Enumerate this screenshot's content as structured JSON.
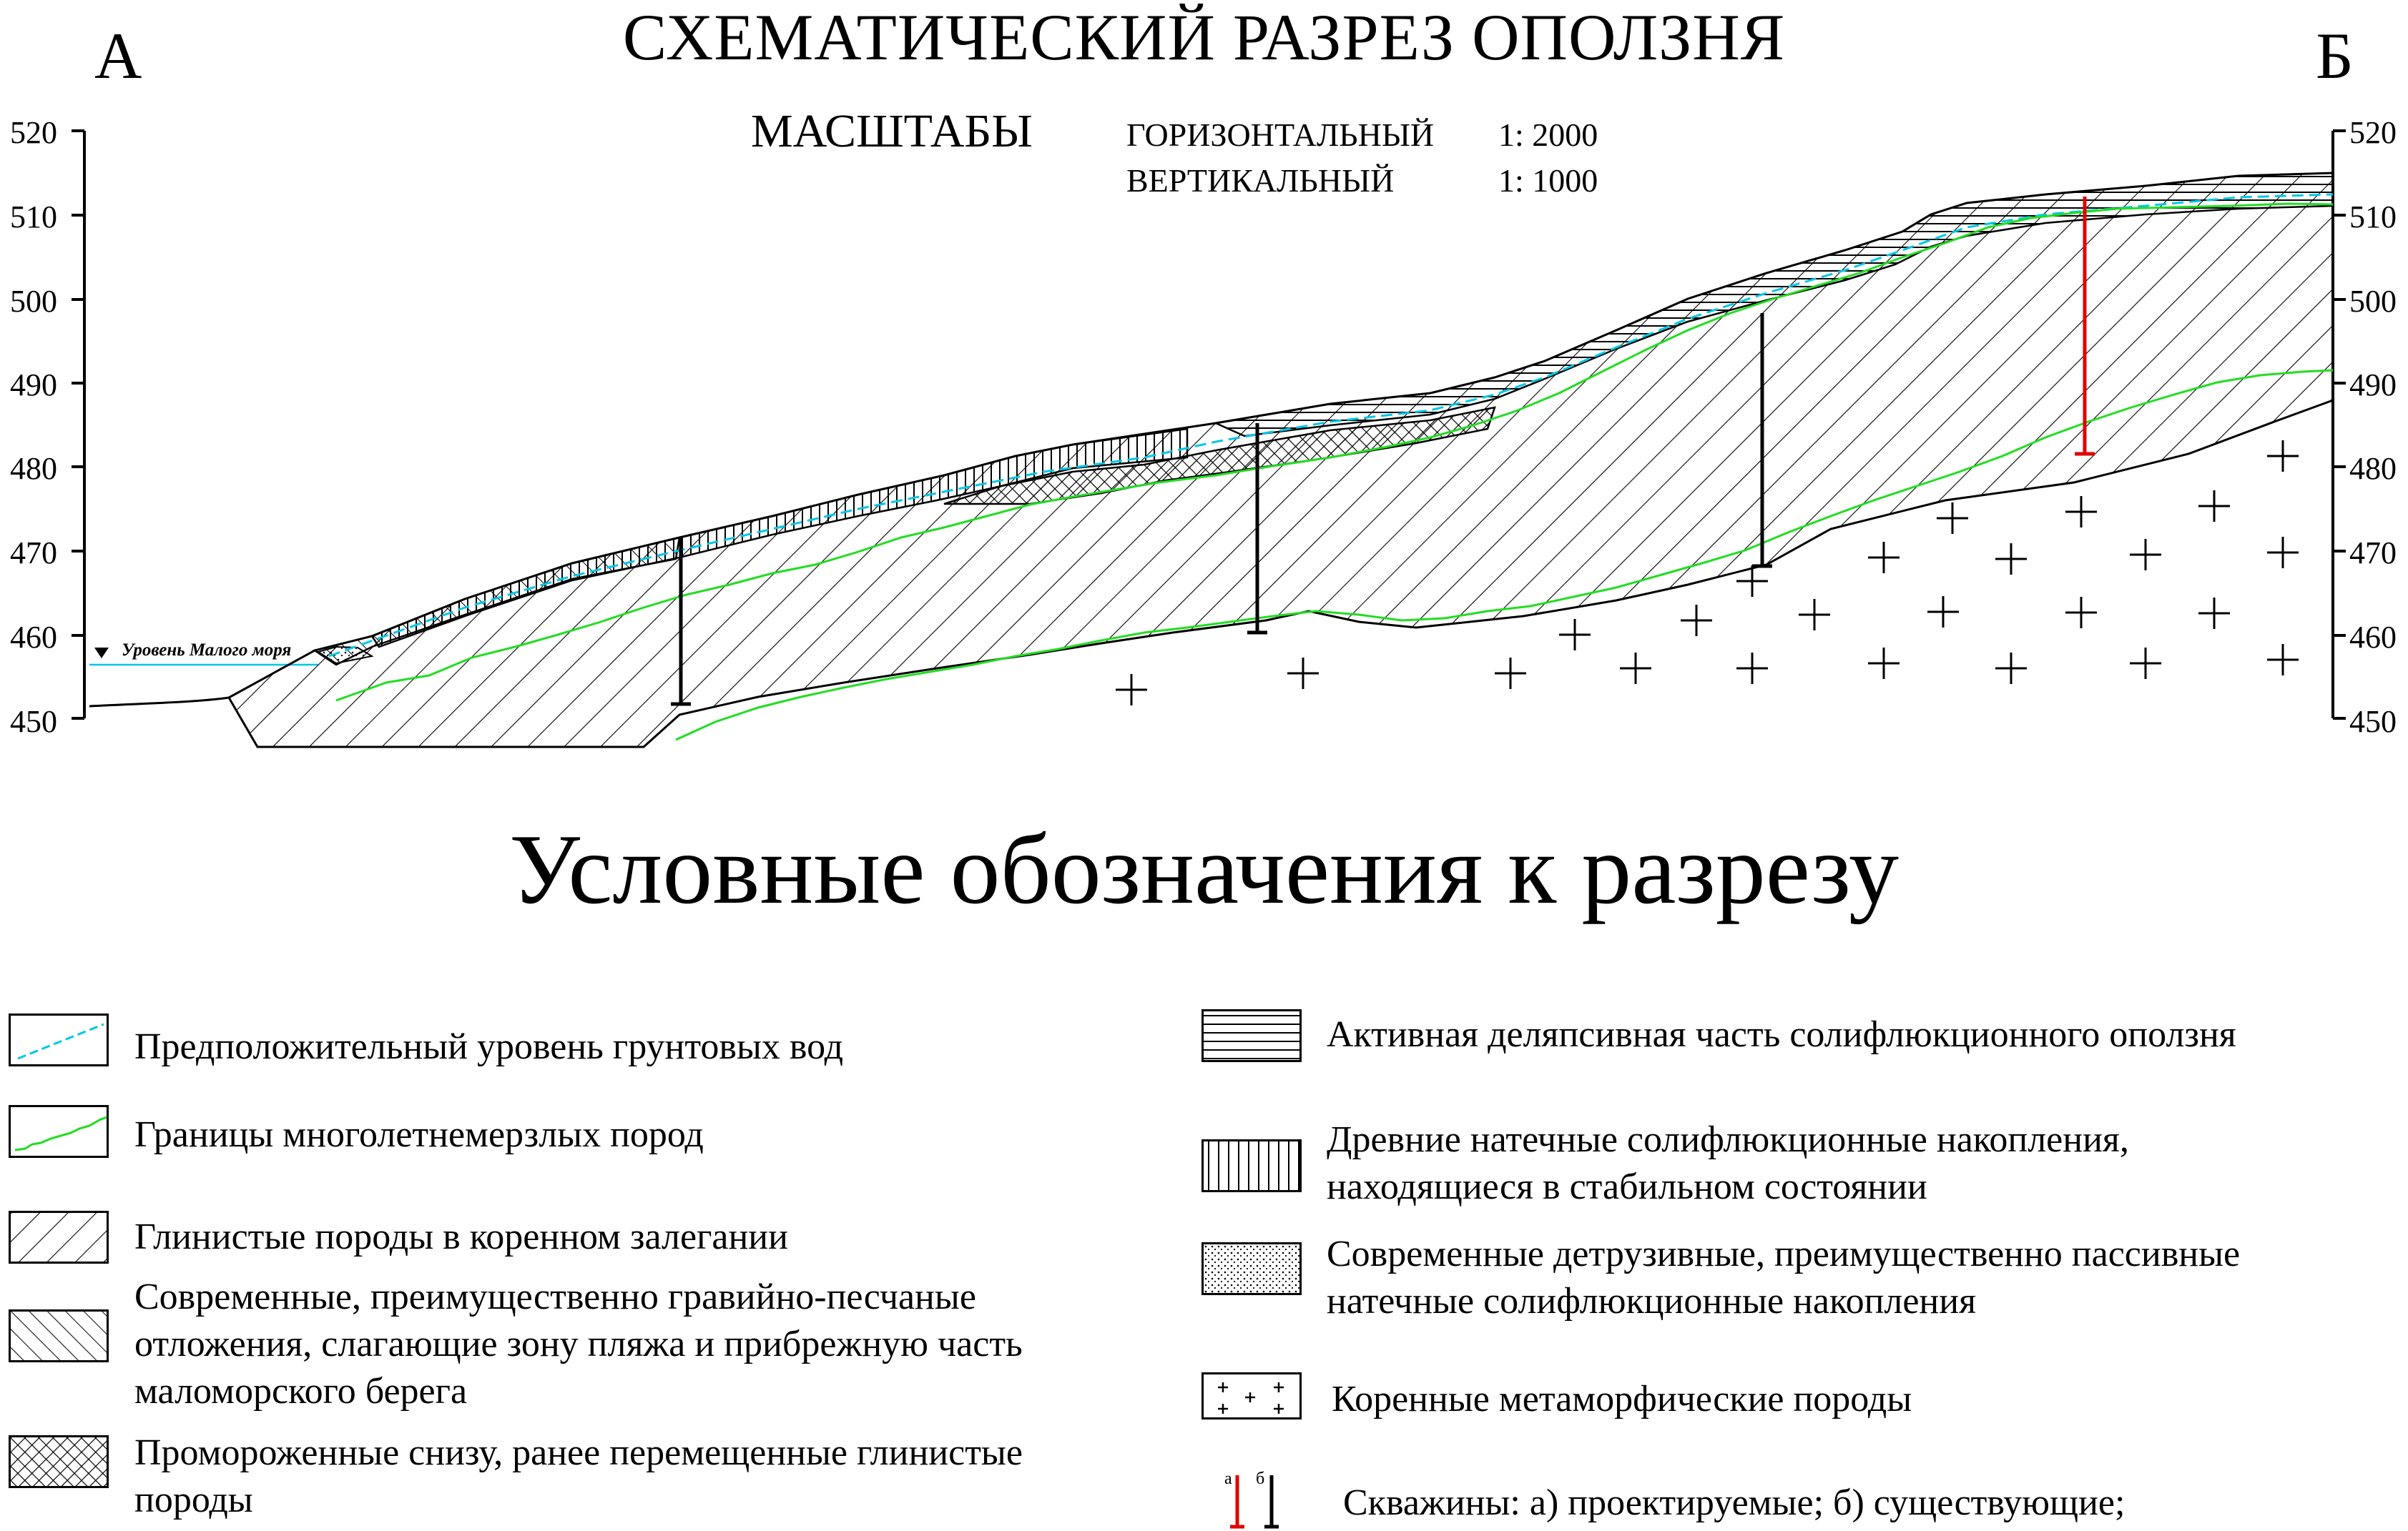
{
  "title": "СХЕМАТИЧЕСКИЙ РАЗРЕЗ ОПОЛЗНЯ",
  "corner_left": "А",
  "corner_right": "Б",
  "scales": {
    "heading": "МАСШТАБЫ",
    "horizontal_label": "ГОРИЗОНТАЛЬНЫЙ",
    "horizontal_value": "1: 2000",
    "vertical_label": "ВЕРТИКАЛЬНЫЙ",
    "vertical_value": "1: 1000"
  },
  "axis": {
    "ticks": [
      "520",
      "510",
      "500",
      "490",
      "480",
      "470",
      "460",
      "450"
    ]
  },
  "sea_level_label": "Уровень Малого моря",
  "legend": {
    "title": "Условные обозначения к разрезу",
    "left": [
      {
        "key": "groundwater",
        "text": "Предположительный уровень грунтовых вод"
      },
      {
        "key": "permafrost",
        "text": "Границы многолетнемерзлых пород"
      },
      {
        "key": "clay_bedrock",
        "text": "Глинистые  породы в коренном залегании"
      },
      {
        "key": "gravel_sand",
        "lines": [
          "Современные, преимущественно гравийно-песчаные",
          "отложения, слагающие зону пляжа и прибрежную часть",
          "маломорского берега"
        ]
      },
      {
        "key": "frozen_clay",
        "lines": [
          "Промороженные снизу, ранее перемещенные глинистые",
          "породы"
        ]
      }
    ],
    "right": [
      {
        "key": "active_landslide",
        "text": "Активная деляпсивная часть солифлюкционного оползня"
      },
      {
        "key": "ancient_flow",
        "lines": [
          "Древние натечные солифлюкционные накопления,",
          "находящиеся в стабильном состоянии"
        ]
      },
      {
        "key": "modern_detrusive",
        "lines": [
          "Современные детрузивные, преимущественно пассивные",
          "натечные солифлюкционные накопления"
        ]
      },
      {
        "key": "metamorphic",
        "text": "Коренные  метаморфические породы"
      },
      {
        "key": "boreholes",
        "text": "Скважины: а) проектируемые; б) существующие;",
        "mark_a": "а",
        "mark_b": "б"
      }
    ]
  },
  "colors": {
    "groundwater": "#00c8e6",
    "permafrost": "#22dd22",
    "projected_borehole": "#e00000",
    "existing_borehole": "#000000"
  }
}
